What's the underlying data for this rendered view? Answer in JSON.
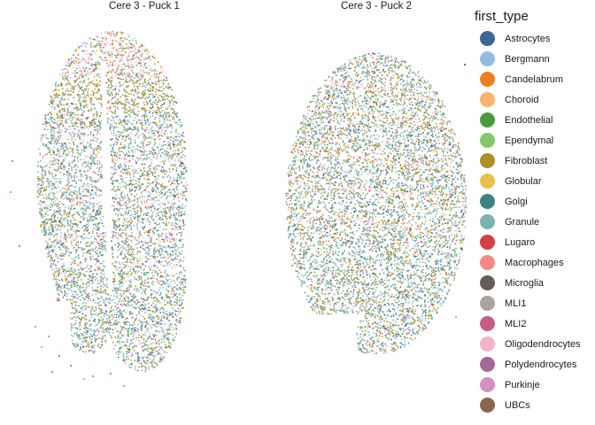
{
  "chart_data": {
    "type": "scatter",
    "facets": [
      "Cere 3 - Puck 1",
      "Cere 3 - Puck 2"
    ],
    "legend": {
      "title": "first_type",
      "position": "right",
      "items": [
        {
          "label": "Astrocytes",
          "color": "#3F6599"
        },
        {
          "label": "Bergmann",
          "color": "#93BCE1"
        },
        {
          "label": "Candelabrum",
          "color": "#EE7F21"
        },
        {
          "label": "Choroid",
          "color": "#F8B46E"
        },
        {
          "label": "Endothelial",
          "color": "#4A9A3D"
        },
        {
          "label": "Ependymal",
          "color": "#83C76A"
        },
        {
          "label": "Fibroblast",
          "color": "#AD8F26"
        },
        {
          "label": "Globular",
          "color": "#E9C04E"
        },
        {
          "label": "Golgi",
          "color": "#3B847D"
        },
        {
          "label": "Granule",
          "color": "#7BB3AC"
        },
        {
          "label": "Lugaro",
          "color": "#D53F43"
        },
        {
          "label": "Macrophages",
          "color": "#F68985"
        },
        {
          "label": "Microglia",
          "color": "#665D5A"
        },
        {
          "label": "MLI1",
          "color": "#ADA4A1"
        },
        {
          "label": "MLI2",
          "color": "#C75C86"
        },
        {
          "label": "Oligodendrocytes",
          "color": "#F5B3C9"
        },
        {
          "label": "Polydendrocytes",
          "color": "#A26896"
        },
        {
          "label": "Purkinje",
          "color": "#D392BE"
        },
        {
          "label": "UBCs",
          "color": "#8C6550"
        }
      ]
    },
    "axes_visible": false,
    "grid": false
  }
}
